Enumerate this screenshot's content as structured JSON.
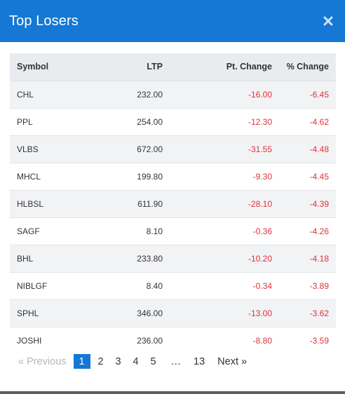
{
  "modal": {
    "title": "Top Losers"
  },
  "table": {
    "headers": {
      "symbol": "Symbol",
      "ltp": "LTP",
      "pt_change": "Pt. Change",
      "pct_change": "% Change"
    },
    "rows": [
      {
        "symbol": "CHL",
        "ltp": "232.00",
        "pt_change": "-16.00",
        "pct_change": "-6.45"
      },
      {
        "symbol": "PPL",
        "ltp": "254.00",
        "pt_change": "-12.30",
        "pct_change": "-4.62"
      },
      {
        "symbol": "VLBS",
        "ltp": "672.00",
        "pt_change": "-31.55",
        "pct_change": "-4.48"
      },
      {
        "symbol": "MHCL",
        "ltp": "199.80",
        "pt_change": "-9.30",
        "pct_change": "-4.45"
      },
      {
        "symbol": "HLBSL",
        "ltp": "611.90",
        "pt_change": "-28.10",
        "pct_change": "-4.39"
      },
      {
        "symbol": "SAGF",
        "ltp": "8.10",
        "pt_change": "-0.36",
        "pct_change": "-4.26"
      },
      {
        "symbol": "BHL",
        "ltp": "233.80",
        "pt_change": "-10.20",
        "pct_change": "-4.18"
      },
      {
        "symbol": "NIBLGF",
        "ltp": "8.40",
        "pt_change": "-0.34",
        "pct_change": "-3.89"
      },
      {
        "symbol": "SPHL",
        "ltp": "346.00",
        "pt_change": "-13.00",
        "pct_change": "-3.62"
      },
      {
        "symbol": "JOSHI",
        "ltp": "236.00",
        "pt_change": "-8.80",
        "pct_change": "-3.59"
      }
    ]
  },
  "pagination": {
    "previous_label": "« Previous",
    "pages": [
      "1",
      "2",
      "3",
      "4",
      "5"
    ],
    "ellipsis": "…",
    "last_page": "13",
    "next_label": "Next »",
    "current_page": "1"
  },
  "colors": {
    "header_bg": "#1478d4",
    "negative": "#e0313a",
    "table_head_bg": "#e9ecef",
    "stripe_bg": "#f2f3f5",
    "active_page_bg": "#1478d4",
    "disabled_text": "#b4b8bd"
  },
  "icons": {
    "close": "close-icon"
  }
}
